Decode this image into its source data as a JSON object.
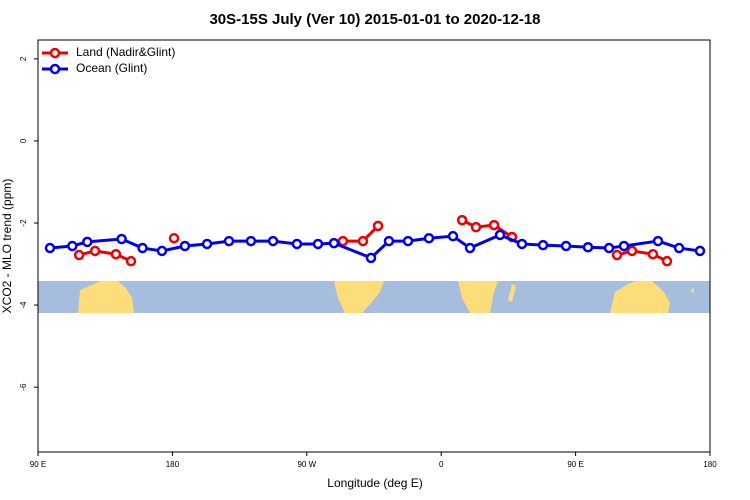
{
  "chart_data": {
    "type": "line",
    "title": "30S-15S July (Ver 10)   2015-01-01 to 2020-12-18",
    "x_label": "Longitude (deg E)",
    "y_label": "XCO2 - MLO trend (ppm)",
    "xlim": [
      90,
      540
    ],
    "xticks": [
      {
        "value": 90,
        "label": "90 E"
      },
      {
        "value": 180,
        "label": "180"
      },
      {
        "value": 270,
        "label": "90 W"
      },
      {
        "value": 360,
        "label": "0"
      },
      {
        "value": 450,
        "label": "90 E"
      },
      {
        "value": 540,
        "label": "180"
      }
    ],
    "ylim": [
      -7.58,
      2.46
    ],
    "yticks": [
      2,
      0,
      -2,
      -4,
      -6
    ],
    "legend": "top-left",
    "series": [
      {
        "name": "Land (Nadir&Glint)",
        "color": "#ee0000",
        "x": [
          117.5,
          128.2,
          142.2,
          152.3,
          null,
          181.1,
          null,
          294.2,
          307.6,
          317.7,
          null,
          374,
          383.3,
          395.4,
          407.4,
          null,
          477.7,
          487.8,
          501.8,
          511.2
        ],
        "values": [
          -2.78,
          -2.68,
          -2.76,
          -2.93,
          null,
          -2.37,
          null,
          -2.44,
          -2.44,
          -2.07,
          null,
          -1.93,
          -2.1,
          -2.05,
          -2.34,
          null,
          -2.78,
          -2.68,
          -2.76,
          -2.93
        ]
      },
      {
        "name": "Ocean (Glint)",
        "color": "#0000ee",
        "x": [
          98,
          113,
          123,
          146,
          160,
          173,
          188.4,
          203.2,
          217.9,
          232.6,
          247.4,
          263.4,
          277.5,
          288.2,
          313,
          325,
          337.8,
          351.8,
          367.9,
          379.3,
          399.4,
          414.1,
          428.2,
          443.6,
          458.3,
          472.4,
          482.4,
          505.2,
          519.3,
          533.3
        ],
        "values": [
          -2.61,
          -2.56,
          -2.46,
          -2.39,
          -2.61,
          -2.68,
          -2.56,
          -2.51,
          -2.44,
          -2.44,
          -2.44,
          -2.51,
          -2.51,
          -2.49,
          -2.85,
          -2.44,
          -2.44,
          -2.37,
          -2.32,
          -2.61,
          -2.29,
          -2.51,
          -2.54,
          -2.56,
          -2.59,
          -2.61,
          -2.56,
          -2.44,
          -2.61,
          -2.68
        ]
      }
    ]
  }
}
